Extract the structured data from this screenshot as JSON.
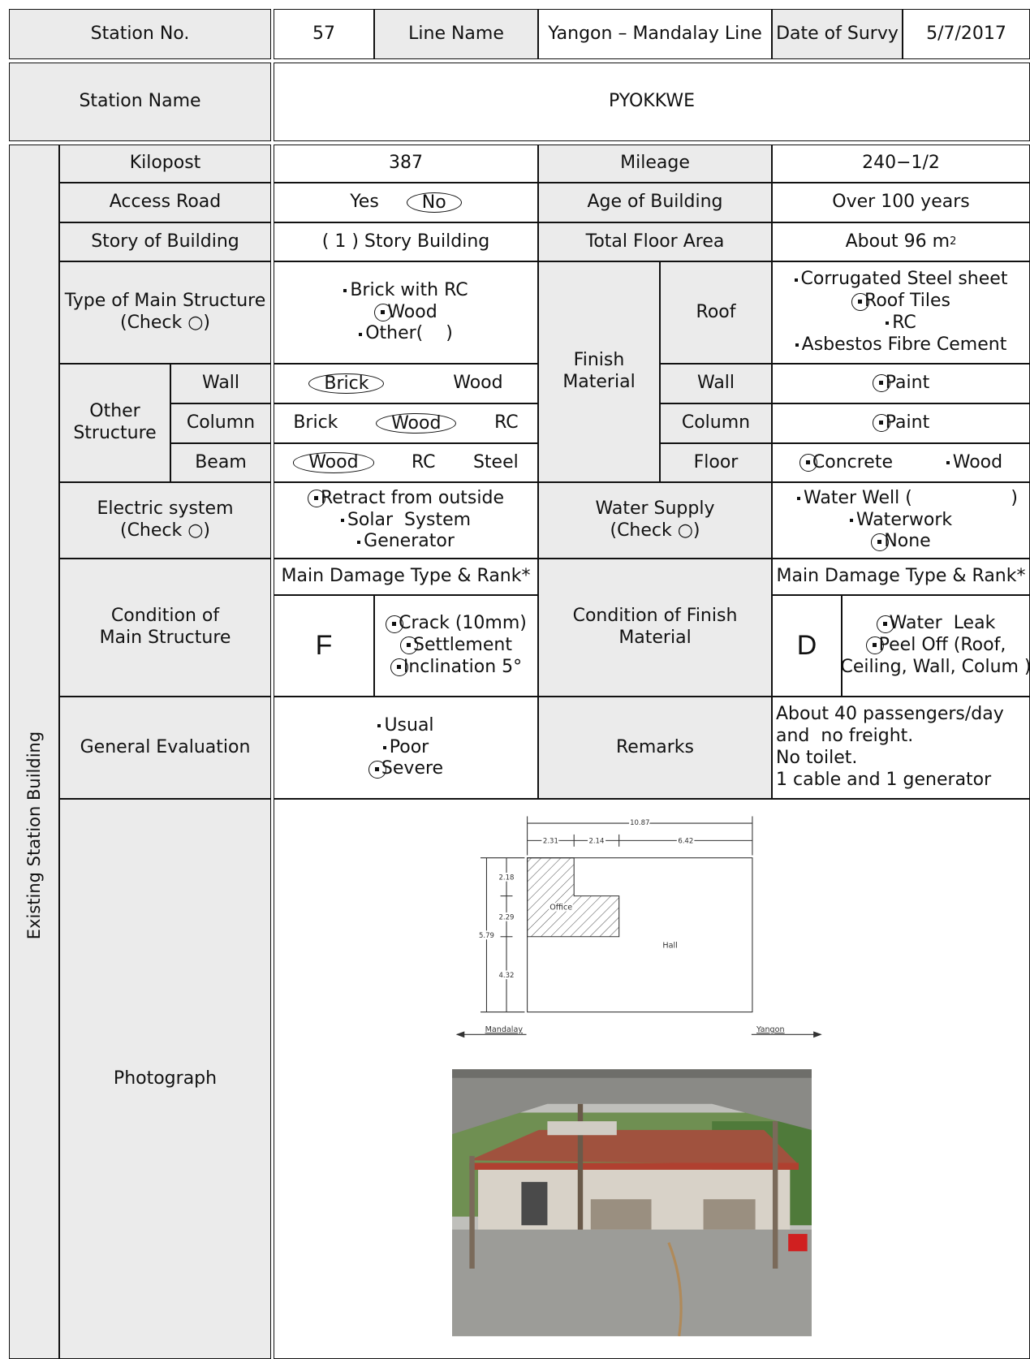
{
  "header": {
    "station_no_label": "Station No.",
    "station_no": "57",
    "line_name_label": "Line Name",
    "line_name": "Yangon – Mandalay Line",
    "date_label": "Date of Survy",
    "date": "5/7/2017",
    "station_name_label": "Station Name",
    "station_name": "PYOKKWE"
  },
  "section_label": "Existing Station Building",
  "kilopost": {
    "label": "Kilopost",
    "value": "387"
  },
  "mileage": {
    "label": "Mileage",
    "value": "240−1/2"
  },
  "access_road": {
    "label": "Access Road",
    "options": [
      "Yes",
      "No"
    ]
  },
  "age_of_building": {
    "label": "Age of Building",
    "value": "Over 100 years"
  },
  "story_of_building": {
    "label": "Story of Building",
    "value": "( 1 ) Story Building"
  },
  "total_floor_area": {
    "label": "Total Floor Area",
    "value": "About 96 m",
    "superscript": "2"
  },
  "main_structure": {
    "label": [
      "Type of Main Structure",
      "(Check ○)"
    ],
    "options": [
      "Brick with RC",
      "Wood",
      "Other(    )"
    ]
  },
  "other_structure": {
    "label": [
      "Other",
      "Structure"
    ],
    "wall": {
      "label": "Wall",
      "options": [
        "Brick",
        "Wood"
      ]
    },
    "column": {
      "label": "Column",
      "options": [
        "Brick",
        "Wood",
        "RC"
      ]
    },
    "beam": {
      "label": "Beam",
      "options": [
        "Wood",
        "RC",
        "Steel"
      ]
    }
  },
  "finish_material": {
    "label": [
      "Finish",
      "Material"
    ],
    "roof": {
      "label": "Roof",
      "options": [
        "Corrugated Steel sheet",
        "Roof Tiles",
        "RC",
        "Asbestos Fibre Cement"
      ]
    },
    "wall": {
      "label": "Wall",
      "options": [
        "Paint"
      ]
    },
    "column": {
      "label": "Column",
      "options": [
        "Paint"
      ]
    },
    "floor": {
      "label": "Floor",
      "options": [
        "Concrete",
        "Wood"
      ]
    }
  },
  "electric_system": {
    "label": [
      "Electric system",
      "(Check ○)"
    ],
    "options": [
      "Retract from outside",
      "Solar  System",
      "Generator"
    ]
  },
  "water_supply": {
    "label": [
      "Water Supply",
      "(Check ○)"
    ],
    "options": [
      "Water Well (",
      "Waterwork",
      "None"
    ],
    "closing": ")"
  },
  "condition_main_structure": {
    "label": [
      "Condition of",
      "Main Structure"
    ],
    "damage_header": "Main Damage Type & Rank*",
    "rank": "F",
    "items": [
      "Crack (10mm)",
      "Settlement",
      "Inclination 5°"
    ]
  },
  "condition_finish_material": {
    "label": [
      "Condition of Finish",
      "Material"
    ],
    "damage_header": "Main Damage Type & Rank*",
    "rank": "D",
    "items": [
      "Water  Leak",
      "Peel Off (Roof,",
      "Ceiling, Wall, Colum )"
    ]
  },
  "general_evaluation": {
    "label": "General Evaluation",
    "options": [
      "Usual",
      "Poor",
      "Severe"
    ]
  },
  "remarks": {
    "label": "Remarks",
    "lines": [
      "About 40 passengers/day",
      "and  no freight.",
      "No toilet.",
      "1 cable and 1 generator"
    ]
  },
  "photograph": {
    "label": "Photograph",
    "floor_plan": {
      "dimensions": {
        "total_width": "10.87",
        "office_width": "2.31",
        "step_width": "2.14",
        "hall_width": "6.42",
        "total_depth": "5.79",
        "office_depth": "2.18",
        "step_depth": "2.29",
        "hall_depth": "4.32"
      },
      "rooms": [
        "Office",
        "Hall"
      ],
      "directions": [
        "Mandalay",
        "Yangon"
      ]
    }
  }
}
